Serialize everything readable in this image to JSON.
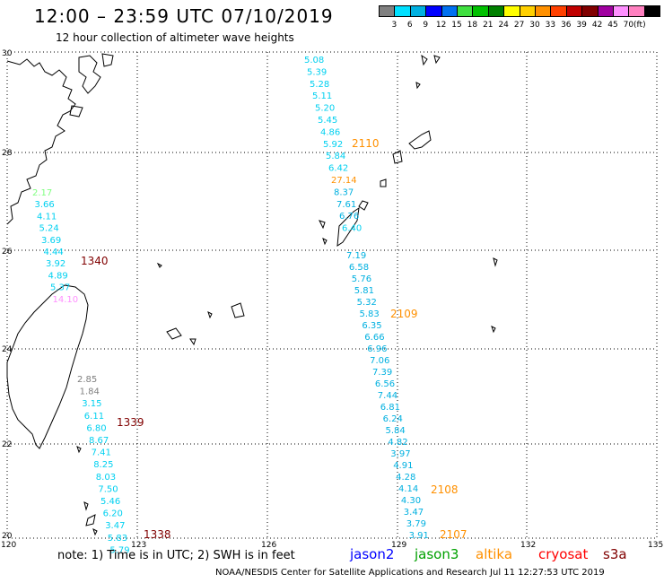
{
  "header": {
    "title": "12:00 – 23:59 UTC 07/10/2019",
    "subtitle": "12 hour collection of altimeter wave heights"
  },
  "color_scale": {
    "colors": [
      "#808080",
      "#00e0ff",
      "#00b0e0",
      "#0000ff",
      "#0070f0",
      "#40e040",
      "#00c000",
      "#008000",
      "#ffff00",
      "#ffd000",
      "#ff9000",
      "#ff4000",
      "#c00000",
      "#800000",
      "#a000a0",
      "#ff90ff",
      "#ff80c0",
      "#000000"
    ],
    "labels": [
      "3",
      "6",
      "9",
      "12",
      "15",
      "18",
      "21",
      "24",
      "27",
      "30",
      "33",
      "36",
      "39",
      "42",
      "45",
      "70",
      "(ft)"
    ]
  },
  "axes": {
    "lat_labels": [
      "30",
      "28",
      "26",
      "24",
      "22",
      "20"
    ],
    "lon_labels": [
      "120",
      "123",
      "126",
      "129",
      "132",
      "135"
    ]
  },
  "tracks": {
    "west_upper": [
      {
        "v": "2.17",
        "c": "#80ff80"
      },
      {
        "v": "3.66",
        "c": "#00d0f0"
      },
      {
        "v": "4.11",
        "c": "#00d0f0"
      },
      {
        "v": "5.24",
        "c": "#00d0f0"
      },
      {
        "v": "3.69",
        "c": "#00d0f0"
      },
      {
        "v": "4.44",
        "c": "#00d0f0"
      },
      {
        "v": "3.92",
        "c": "#00d0f0"
      },
      {
        "v": "4.89",
        "c": "#00d0f0"
      },
      {
        "v": "5.37",
        "c": "#00d0f0"
      },
      {
        "v": "14.10",
        "c": "#ff90ff"
      }
    ],
    "west_lower": [
      {
        "v": "2.85",
        "c": "#808080"
      },
      {
        "v": "1.84",
        "c": "#808080"
      },
      {
        "v": "3.15",
        "c": "#00d0f0"
      },
      {
        "v": "6.11",
        "c": "#00d0f0"
      },
      {
        "v": "6.80",
        "c": "#00d0f0"
      },
      {
        "v": "8.67",
        "c": "#00d0f0"
      },
      {
        "v": "7.41",
        "c": "#00d0f0"
      },
      {
        "v": "8.25",
        "c": "#00d0f0"
      },
      {
        "v": "8.03",
        "c": "#00d0f0"
      },
      {
        "v": "7.50",
        "c": "#00d0f0"
      },
      {
        "v": "5.46",
        "c": "#00d0f0"
      },
      {
        "v": "6.20",
        "c": "#00d0f0"
      },
      {
        "v": "3.47",
        "c": "#00d0f0"
      },
      {
        "v": "5.83",
        "c": "#00d0f0"
      },
      {
        "v": "5.79",
        "c": "#00d0f0"
      }
    ],
    "east_upper": [
      {
        "v": "5.08",
        "c": "#00d0f0"
      },
      {
        "v": "5.39",
        "c": "#00d0f0"
      },
      {
        "v": "5.28",
        "c": "#00d0f0"
      },
      {
        "v": "5.11",
        "c": "#00d0f0"
      },
      {
        "v": "5.20",
        "c": "#00d0f0"
      },
      {
        "v": "5.45",
        "c": "#00d0f0"
      },
      {
        "v": "4.86",
        "c": "#00d0f0"
      },
      {
        "v": "5.92",
        "c": "#00d0f0"
      },
      {
        "v": "5.84",
        "c": "#00d0f0"
      },
      {
        "v": "6.42",
        "c": "#00d0f0"
      },
      {
        "v": "27.14",
        "c": "#ff9000"
      },
      {
        "v": "8.37",
        "c": "#00b0e0"
      },
      {
        "v": "7.61",
        "c": "#00b0e0"
      },
      {
        "v": "6.76",
        "c": "#00b0e0"
      },
      {
        "v": "6.40",
        "c": "#00d0f0"
      }
    ],
    "east_lower": [
      {
        "v": "7.19",
        "c": "#00b0e0"
      },
      {
        "v": "6.58",
        "c": "#00b0e0"
      },
      {
        "v": "5.76",
        "c": "#00b0e0"
      },
      {
        "v": "5.81",
        "c": "#00b0e0"
      },
      {
        "v": "5.32",
        "c": "#00b0e0"
      },
      {
        "v": "5.83",
        "c": "#00b0e0"
      },
      {
        "v": "6.35",
        "c": "#00b0e0"
      },
      {
        "v": "6.66",
        "c": "#00b0e0"
      },
      {
        "v": "6.96",
        "c": "#00b0e0"
      },
      {
        "v": "7.06",
        "c": "#00b0e0"
      },
      {
        "v": "7.39",
        "c": "#00b0e0"
      },
      {
        "v": "6.56",
        "c": "#00b0e0"
      },
      {
        "v": "7.44",
        "c": "#00b0e0"
      },
      {
        "v": "6.81",
        "c": "#00b0e0"
      },
      {
        "v": "6.24",
        "c": "#00b0e0"
      },
      {
        "v": "5.84",
        "c": "#00b0e0"
      },
      {
        "v": "4.82",
        "c": "#00b0e0"
      },
      {
        "v": "3.97",
        "c": "#00b0e0"
      },
      {
        "v": "4.91",
        "c": "#00b0e0"
      },
      {
        "v": "4.28",
        "c": "#00b0e0"
      },
      {
        "v": "4.14",
        "c": "#00b0e0"
      },
      {
        "v": "4.30",
        "c": "#00b0e0"
      },
      {
        "v": "3.47",
        "c": "#00b0e0"
      },
      {
        "v": "3.79",
        "c": "#00b0e0"
      },
      {
        "v": "3.91",
        "c": "#00b0e0"
      }
    ]
  },
  "time_labels": [
    {
      "v": "1340",
      "c": "#800000"
    },
    {
      "v": "1339",
      "c": "#800000"
    },
    {
      "v": "1338",
      "c": "#800000"
    },
    {
      "v": "2110",
      "c": "#ff9000"
    },
    {
      "v": "2109",
      "c": "#ff9000"
    },
    {
      "v": "2108",
      "c": "#ff9000"
    },
    {
      "v": "2107",
      "c": "#ff9000"
    }
  ],
  "footer": {
    "note": "note:  1) Time is in UTC;  2) SWH is in feet",
    "satellites": [
      {
        "name": "jason2",
        "color": "#0000ff"
      },
      {
        "name": "jason3",
        "color": "#00a000"
      },
      {
        "name": "altika",
        "color": "#ff9000"
      },
      {
        "name": "cryosat",
        "color": "#ff0000"
      },
      {
        "name": "s3a",
        "color": "#800000"
      }
    ],
    "credit": "NOAA/NESDIS Center for Satellite Applications and Research     Jul 11 12:27:53 UTC 2019"
  }
}
